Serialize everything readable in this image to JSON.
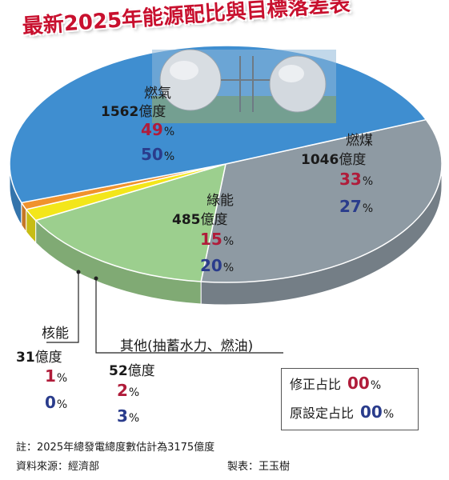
{
  "title": "最新2025年能源配比與目標落差表",
  "colors": {
    "gas": "#3f8ed0",
    "coal": "#8e9aa3",
    "green": "#9ccf8e",
    "other": "#f3e61a",
    "nuclear": "#f0922d",
    "revised": "#b01c3a",
    "original": "#2a3c8c",
    "title": "#c8102e"
  },
  "chart_data": {
    "type": "pie",
    "unit": "億度",
    "slices": [
      {
        "name": "燃氣",
        "amount": "1562",
        "revised_pct": 49,
        "original_pct": 50,
        "color": "#3f8ed0"
      },
      {
        "name": "燃煤",
        "amount": "1046",
        "revised_pct": 33,
        "original_pct": 27,
        "color": "#8e9aa3"
      },
      {
        "name": "綠能",
        "amount": "485",
        "revised_pct": 15,
        "original_pct": 20,
        "color": "#9ccf8e"
      },
      {
        "name": "其他(抽蓄水力、燃油)",
        "amount": "52",
        "revised_pct": 2,
        "original_pct": 3,
        "color": "#f3e61a"
      },
      {
        "name": "核能",
        "amount": "31",
        "revised_pct": 1,
        "original_pct": 0,
        "color": "#f0922d"
      }
    ],
    "pct_unit": "%"
  },
  "legend": {
    "revised_label": "修正占比",
    "original_label": "原設定占比",
    "code": "00",
    "unit": "%"
  },
  "notes": {
    "footnote": "註：2025年總發電總度數估計為3175億度",
    "source": "資料來源：經濟部",
    "maker": "製表：王玉樹"
  }
}
